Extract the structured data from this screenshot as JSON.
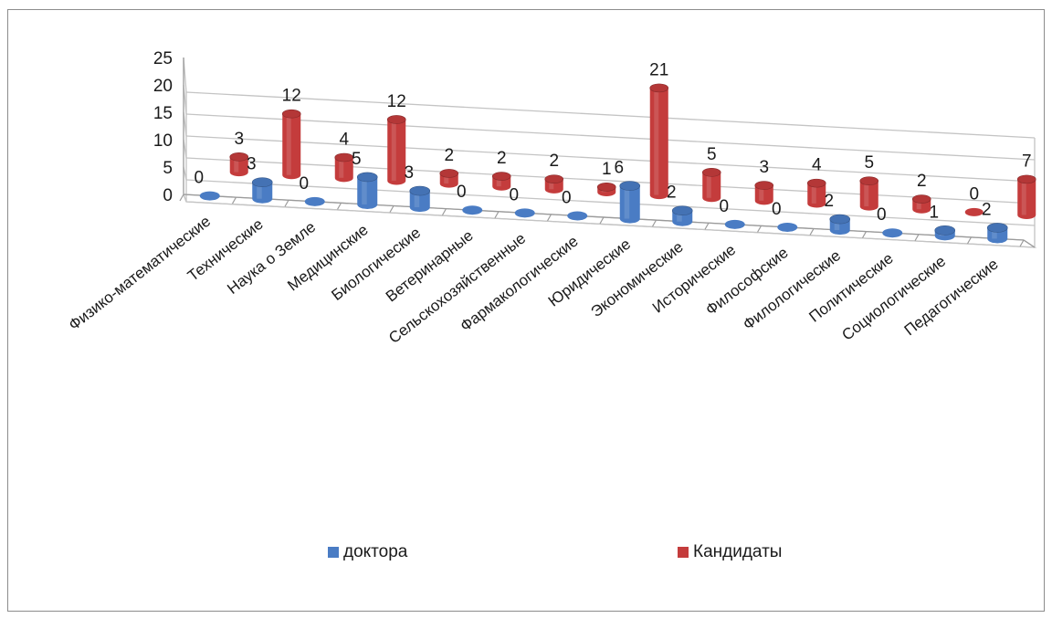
{
  "chart_data": {
    "type": "bar",
    "categories": [
      "Физико-математические",
      "Технические",
      "Наука о Земле",
      "Медицинские",
      "Биологические",
      "Ветеринарные",
      "Сельскохозяйственные",
      "Фармакологические",
      "Юридические",
      "Экономические",
      "Исторические",
      "Философские",
      "Филологические",
      "Политические",
      "Социологические",
      "Педагогические"
    ],
    "series": [
      {
        "name": "доктора",
        "color": "#4a7cc4",
        "values": [
          0,
          3,
          0,
          5,
          3,
          0,
          0,
          0,
          6,
          2,
          0,
          0,
          2,
          0,
          1,
          2
        ]
      },
      {
        "name": "Кандидаты",
        "color": "#c43c3c",
        "values": [
          3,
          12,
          4,
          12,
          2,
          2,
          2,
          1,
          21,
          5,
          3,
          4,
          5,
          2,
          0,
          7
        ]
      }
    ],
    "ylim": [
      0,
      25
    ],
    "yticks": [
      0,
      5,
      10,
      15,
      20,
      25
    ],
    "grid": true,
    "legend": "bottom"
  },
  "legend": {
    "doctors": "доктора",
    "candidates": "Кандидаты"
  }
}
